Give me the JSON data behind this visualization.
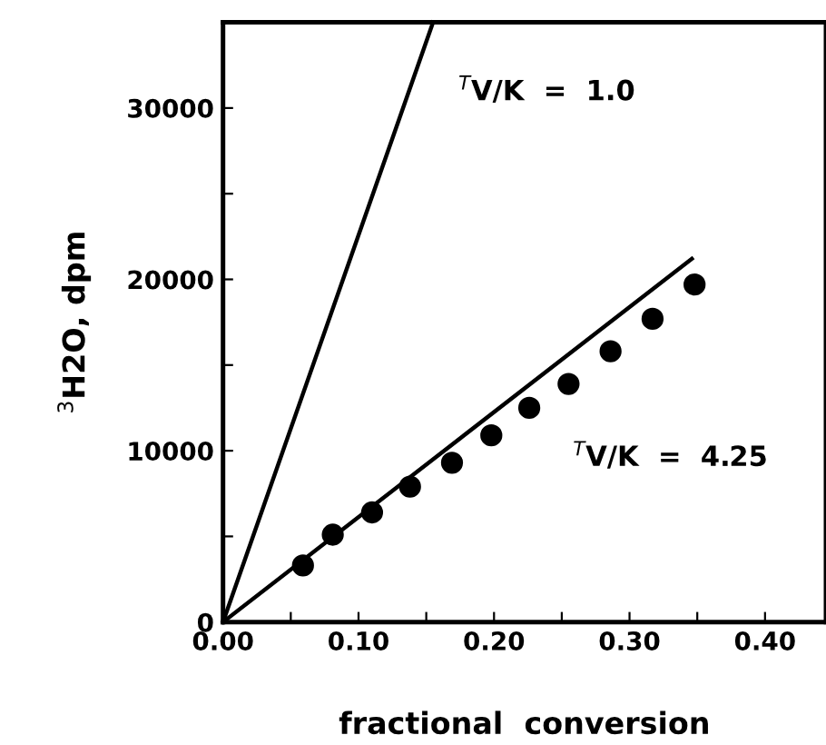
{
  "chart_data": {
    "type": "scatter",
    "xlabel": "fractional  conversion",
    "ylabel": "$^{3}$H2O, dpm",
    "xlim": [
      0,
      0.445
    ],
    "ylim": [
      0,
      35000
    ],
    "xticks": [
      {
        "value": 0,
        "label": "0.00"
      },
      {
        "value": 0.05,
        "label": null
      },
      {
        "value": 0.1,
        "label": "0.10"
      },
      {
        "value": 0.15,
        "label": null
      },
      {
        "value": 0.2,
        "label": "0.20"
      },
      {
        "value": 0.25,
        "label": null
      },
      {
        "value": 0.3,
        "label": "0.30"
      },
      {
        "value": 0.35,
        "label": null
      },
      {
        "value": 0.4,
        "label": "0.40"
      }
    ],
    "yticks": [
      0,
      {
        "value": 5000,
        "label": null
      },
      10000,
      {
        "value": 15000,
        "label": null
      },
      20000,
      {
        "value": 25000,
        "label": null
      },
      30000
    ],
    "grid": false,
    "legend": false,
    "series": [
      {
        "type": "line",
        "color": "#000000",
        "x": [
          0,
          0.155
        ],
        "values": [
          0,
          35000
        ],
        "marker": "none",
        "line_style": "solid"
      },
      {
        "type": "line",
        "color": "#000000",
        "x": [
          0,
          0.346
        ],
        "values": [
          0,
          21200
        ],
        "marker": "none",
        "line_style": "solid"
      },
      {
        "color": "#000000",
        "marker": "circle",
        "x": [
          0.059,
          0.081,
          0.11,
          0.138,
          0.169,
          0.198,
          0.226,
          0.255,
          0.286,
          0.317,
          0.348
        ],
        "values": [
          3300,
          5100,
          6400,
          7900,
          9300,
          10900,
          12500,
          13900,
          15800,
          17700,
          19700
        ]
      }
    ],
    "annotations": [
      "$^{T}$V/K  =  1.0",
      "$^{T}$V/K  =  4.25"
    ]
  }
}
